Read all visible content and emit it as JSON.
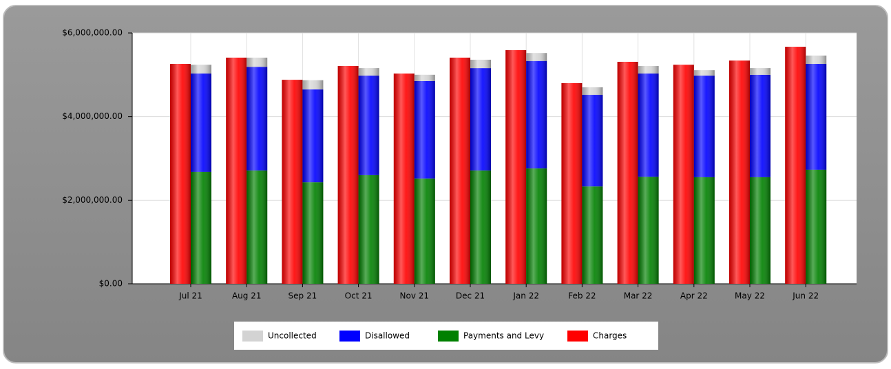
{
  "chart_data": {
    "type": "bar",
    "categories": [
      "Jul 21",
      "Aug 21",
      "Sep 21",
      "Oct 21",
      "Nov 21",
      "Dec 21",
      "Jan 22",
      "Feb 22",
      "Mar 22",
      "Apr 22",
      "May 22",
      "Jun 22"
    ],
    "series": [
      {
        "name": "Uncollected",
        "color": "#d3d3d3",
        "values": [
          210000,
          220000,
          220000,
          180000,
          150000,
          200000,
          190000,
          180000,
          180000,
          130000,
          160000,
          200000
        ]
      },
      {
        "name": "Disallowed",
        "color": "#0000ff",
        "values": [
          2350000,
          2480000,
          2220000,
          2380000,
          2330000,
          2450000,
          2570000,
          2190000,
          2470000,
          2430000,
          2450000,
          2530000
        ]
      },
      {
        "name": "Payments and Levy",
        "color": "#008000",
        "values": [
          2680000,
          2710000,
          2430000,
          2600000,
          2520000,
          2710000,
          2760000,
          2330000,
          2560000,
          2550000,
          2550000,
          2730000
        ]
      },
      {
        "name": "Charges",
        "color": "#ff0000",
        "values": [
          5260000,
          5410000,
          4880000,
          5210000,
          5030000,
          5410000,
          5590000,
          4800000,
          5310000,
          5240000,
          5340000,
          5670000
        ]
      }
    ],
    "ylim": [
      0,
      6000000
    ],
    "yticks": [
      {
        "value": 0,
        "label": "$0.00"
      },
      {
        "value": 2000000,
        "label": "$2,000,000.00"
      },
      {
        "value": 4000000,
        "label": "$4,000,000.00"
      },
      {
        "value": 6000000,
        "label": "$6,000,000.00"
      }
    ],
    "grid": true,
    "legend": "bottom"
  }
}
